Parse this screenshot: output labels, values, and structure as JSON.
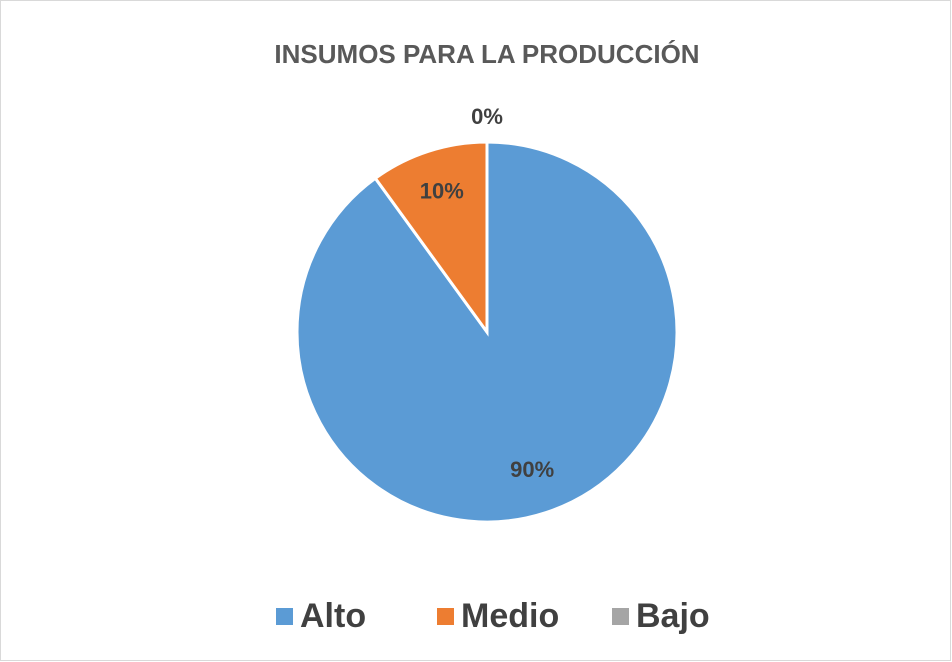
{
  "chart_data": {
    "type": "pie",
    "title": "INSUMOS PARA LA PRODUCCIÓN",
    "categories": [
      "Alto",
      "Medio",
      "Bajo"
    ],
    "values": [
      90,
      10,
      0
    ],
    "value_labels": [
      "90%",
      "10%",
      "0%"
    ],
    "colors": [
      "#5b9bd5",
      "#ed7d31",
      "#a5a5a5"
    ],
    "legend": "bottom"
  }
}
